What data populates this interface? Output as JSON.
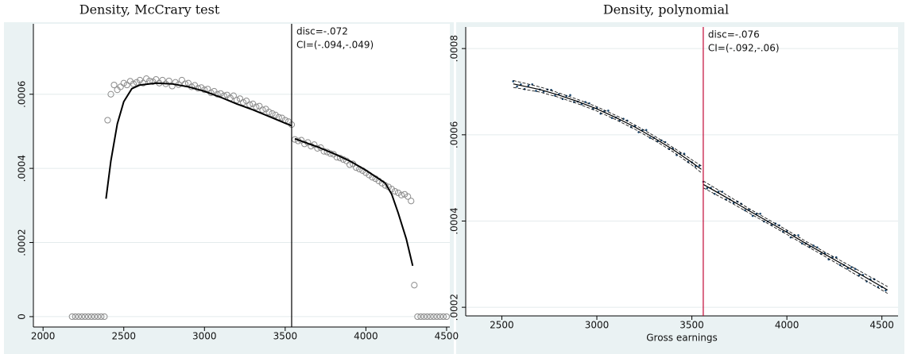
{
  "chart_data": [
    {
      "type": "scatter",
      "title": "Density, McCrary test",
      "marker": "hollow",
      "color": "#8c8c8c",
      "fit_color": "#000000",
      "xlim": [
        1940,
        4520
      ],
      "ylim": [
        -2.8e-05,
        0.00079
      ],
      "xticks": [
        2000,
        2500,
        3000,
        3500,
        4000,
        4500
      ],
      "yticks": [
        0,
        {
          "value": 0.0002,
          "label": ".0002"
        },
        {
          "value": 0.0004,
          "label": ".0004"
        },
        {
          "value": 0.0006,
          "label": ".0006"
        }
      ],
      "grid": true,
      "x": [
        2180,
        2200,
        2220,
        2240,
        2260,
        2280,
        2300,
        2320,
        2340,
        2360,
        2380,
        2400,
        2420,
        2440,
        2460,
        2480,
        2500,
        2520,
        2540,
        2560,
        2580,
        2600,
        2620,
        2640,
        2660,
        2680,
        2700,
        2720,
        2740,
        2760,
        2780,
        2800,
        2820,
        2840,
        2860,
        2880,
        2900,
        2920,
        2940,
        2960,
        2980,
        3000,
        3020,
        3040,
        3060,
        3080,
        3100,
        3120,
        3140,
        3160,
        3180,
        3200,
        3220,
        3240,
        3260,
        3280,
        3300,
        3320,
        3340,
        3360,
        3380,
        3400,
        3420,
        3440,
        3460,
        3480,
        3500,
        3520,
        3540,
        3560,
        3580,
        3600,
        3620,
        3640,
        3660,
        3680,
        3700,
        3720,
        3740,
        3760,
        3780,
        3800,
        3820,
        3840,
        3860,
        3880,
        3900,
        3920,
        3940,
        3960,
        3980,
        4000,
        4020,
        4040,
        4060,
        4080,
        4100,
        4120,
        4140,
        4160,
        4180,
        4200,
        4220,
        4240,
        4260,
        4280,
        4300,
        4320,
        4340,
        4360,
        4380,
        4400,
        4420,
        4440,
        4460,
        4480,
        4500
      ],
      "values": [
        0,
        0,
        0,
        0,
        0,
        0,
        0,
        0,
        0,
        0,
        0,
        0.00053,
        0.0006,
        0.000625,
        0.000612,
        0.00062,
        0.00063,
        0.000625,
        0.000635,
        0.000628,
        0.000632,
        0.000638,
        0.00063,
        0.000642,
        0.000636,
        0.000634,
        0.00064,
        0.00063,
        0.000638,
        0.000628,
        0.000636,
        0.000622,
        0.000632,
        0.000626,
        0.000638,
        0.000628,
        0.00063,
        0.00062,
        0.000624,
        0.000616,
        0.000618,
        0.000612,
        0.000614,
        0.000604,
        0.000608,
        0.0006,
        0.000602,
        0.000596,
        0.000598,
        0.00059,
        0.000596,
        0.000584,
        0.000588,
        0.000578,
        0.000582,
        0.000572,
        0.000574,
        0.000566,
        0.000568,
        0.000558,
        0.00056,
        0.000552,
        0.000548,
        0.000544,
        0.000538,
        0.000536,
        0.00053,
        0.000526,
        0.000518,
        0.000478,
        0.000474,
        0.000476,
        0.000466,
        0.00047,
        0.00046,
        0.000464,
        0.000454,
        0.000456,
        0.000446,
        0.000444,
        0.00044,
        0.000438,
        0.00043,
        0.000428,
        0.000424,
        0.00042,
        0.00041,
        0.000412,
        0.000402,
        0.000398,
        0.000394,
        0.000388,
        0.000382,
        0.000376,
        0.000372,
        0.000366,
        0.00036,
        0.000354,
        0.00035,
        0.000344,
        0.000338,
        0.000334,
        0.000328,
        0.00033,
        0.000324,
        0.000312,
        8.5e-05,
        0,
        0,
        0,
        0,
        0,
        0,
        0,
        0,
        0,
        0
      ],
      "fits": [
        {
          "x": [
            2390,
            2420,
            2460,
            2500,
            2550,
            2600,
            2700,
            2800,
            2900,
            3000,
            3100,
            3200,
            3300,
            3400,
            3500,
            3540
          ],
          "values": [
            0.000318,
            0.00042,
            0.00052,
            0.00058,
            0.000615,
            0.000625,
            0.00063,
            0.000628,
            0.00062,
            0.000608,
            0.000592,
            0.000574,
            0.000558,
            0.00054,
            0.000522,
            0.000515
          ]
        },
        {
          "x": [
            3560,
            3700,
            3800,
            3900,
            4000,
            4080,
            4120,
            4160,
            4200,
            4250,
            4290
          ],
          "values": [
            0.00048,
            0.000458,
            0.00044,
            0.00042,
            0.000395,
            0.000372,
            0.00036,
            0.00033,
            0.00028,
            0.00021,
            0.000137
          ]
        }
      ],
      "cutoff": 3540,
      "cutoff_color": "#000000",
      "annotations": [
        "disc=-.072",
        "CI=(-.094,-.049)"
      ]
    },
    {
      "type": "scatter",
      "title": "Density, polynomial",
      "marker": "dot",
      "color": "#1a476f",
      "fit_color": "#000000",
      "x_label": "Gross earnings",
      "xlim": [
        2310,
        4585
      ],
      "ylim": [
        0.00018,
        0.00085
      ],
      "xticks": [
        2500,
        3000,
        3500,
        4000,
        4500
      ],
      "yticks": [
        {
          "value": 0.0002,
          "label": ".0002"
        },
        {
          "value": 0.0004,
          "label": ".0004"
        },
        {
          "value": 0.0006,
          "label": ".0006"
        },
        {
          "value": 0.0008,
          "label": ".0008"
        }
      ],
      "grid": true,
      "x": [
        2560,
        2580,
        2600,
        2620,
        2640,
        2660,
        2680,
        2700,
        2720,
        2740,
        2760,
        2780,
        2800,
        2820,
        2840,
        2860,
        2880,
        2900,
        2920,
        2940,
        2960,
        2980,
        3000,
        3020,
        3040,
        3060,
        3080,
        3100,
        3120,
        3140,
        3160,
        3180,
        3200,
        3220,
        3240,
        3260,
        3280,
        3300,
        3320,
        3340,
        3360,
        3380,
        3400,
        3420,
        3440,
        3460,
        3480,
        3500,
        3520,
        3540,
        3560,
        3580,
        3600,
        3620,
        3640,
        3660,
        3680,
        3700,
        3720,
        3740,
        3760,
        3780,
        3800,
        3820,
        3840,
        3860,
        3880,
        3900,
        3920,
        3940,
        3960,
        3980,
        4000,
        4020,
        4040,
        4060,
        4080,
        4100,
        4120,
        4140,
        4160,
        4180,
        4200,
        4220,
        4240,
        4260,
        4280,
        4300,
        4320,
        4340,
        4360,
        4380,
        4400,
        4420,
        4440,
        4460,
        4480,
        4500,
        4520
      ],
      "values": [
        0.000724,
        0.000712,
        0.000717,
        0.000706,
        0.000714,
        0.000717,
        0.000702,
        0.000705,
        0.0007,
        0.000705,
        0.000704,
        0.000691,
        0.000694,
        0.000683,
        0.00069,
        0.000692,
        0.000676,
        0.000677,
        0.000671,
        0.000676,
        0.000673,
        0.00066,
        0.000662,
        0.000649,
        0.000655,
        0.000656,
        0.000639,
        0.00064,
        0.000633,
        0.000637,
        0.000633,
        0.000618,
        0.00062,
        0.000606,
        0.000611,
        0.000611,
        0.000593,
        0.000593,
        0.000585,
        0.000587,
        0.000583,
        0.000567,
        0.000568,
        0.000553,
        0.000557,
        0.000556,
        0.000537,
        0.000536,
        0.000527,
        0.000528,
        0.000491,
        0.000476,
        0.000477,
        0.000463,
        0.000468,
        0.000468,
        0.00045,
        0.00045,
        0.000442,
        0.000445,
        0.00044,
        0.000425,
        0.000426,
        0.000412,
        0.000417,
        0.000417,
        0.000399,
        0.000399,
        0.000391,
        0.000394,
        0.00039,
        0.000375,
        0.000376,
        0.000362,
        0.000367,
        0.000367,
        0.000348,
        0.000348,
        0.00034,
        0.000343,
        0.000339,
        0.000324,
        0.000325,
        0.000311,
        0.000316,
        0.000316,
        0.000298,
        0.000298,
        0.00029,
        0.000293,
        0.000289,
        0.000274,
        0.000275,
        0.00026,
        0.000265,
        0.000265,
        0.000247,
        0.000247,
        0.000239
      ],
      "fits": [
        {
          "x": [
            2560,
            2700,
            2800,
            2900,
            3000,
            3100,
            3200,
            3300,
            3400,
            3500,
            3550
          ],
          "values": [
            0.000718,
            0.000705,
            0.000692,
            0.000677,
            0.00066,
            0.00064,
            0.000618,
            0.000593,
            0.000566,
            0.000536,
            0.00052
          ],
          "lower": [
            0.00071,
            0.000699,
            0.000687,
            0.000672,
            0.000655,
            0.000635,
            0.000613,
            0.000588,
            0.000561,
            0.00053,
            0.000512
          ],
          "upper": [
            0.000726,
            0.000711,
            0.000697,
            0.000682,
            0.000665,
            0.000645,
            0.000623,
            0.000598,
            0.000571,
            0.000542,
            0.000528
          ]
        },
        {
          "x": [
            3560,
            3700,
            3800,
            3900,
            4000,
            4100,
            4200,
            4300,
            4400,
            4530
          ],
          "values": [
            0.000485,
            0.00045,
            0.000424,
            0.000399,
            0.000374,
            0.000348,
            0.000323,
            0.000298,
            0.000273,
            0.00024
          ],
          "lower": [
            0.000477,
            0.000444,
            0.000419,
            0.000394,
            0.000369,
            0.000343,
            0.000318,
            0.000292,
            0.000266,
            0.000232
          ],
          "upper": [
            0.000493,
            0.000456,
            0.000429,
            0.000404,
            0.000379,
            0.000353,
            0.000328,
            0.000304,
            0.00028,
            0.000248
          ]
        }
      ],
      "cutoff": 3560,
      "cutoff_color": "#c10534",
      "annotations": [
        "disc=-.076",
        "CI=(-.092,-.06)"
      ]
    }
  ]
}
